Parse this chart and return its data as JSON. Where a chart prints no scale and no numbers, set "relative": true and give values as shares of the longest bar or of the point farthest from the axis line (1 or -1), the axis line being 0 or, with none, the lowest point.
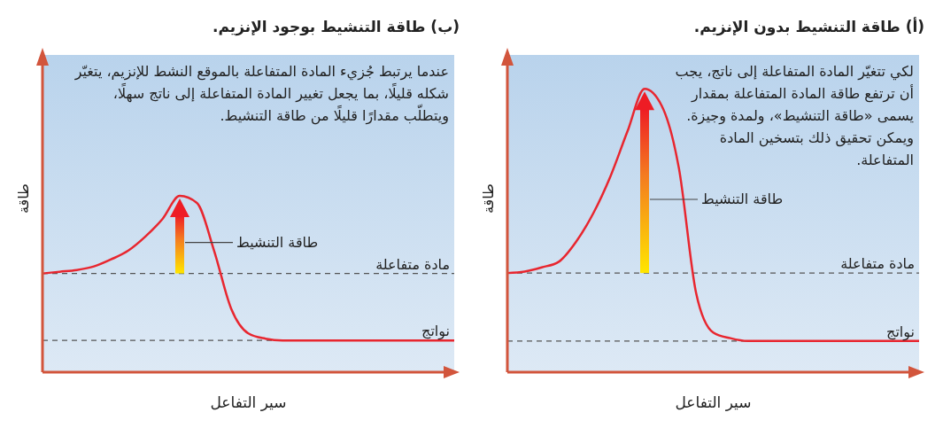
{
  "chart_data": [
    {
      "type": "line",
      "title": "(أ) طاقة التنشيط بدون الإنزيم.",
      "xlabel": "سير التفاعل",
      "ylabel": "طاقة",
      "relative": true,
      "marker": "none",
      "line_style": "solid",
      "legend": false,
      "grid": false,
      "categories": [
        null,
        null,
        null,
        null,
        null,
        null,
        null,
        null,
        null,
        null,
        null,
        null,
        null,
        null,
        null,
        null,
        null,
        null,
        null,
        null,
        null,
        null,
        null,
        null,
        null
      ],
      "series": [
        {
          "color": "#e8262f",
          "values": [
            0.35,
            0.355,
            0.37,
            0.39,
            0.46,
            0.56,
            0.69,
            0.85,
            1,
            0.94,
            0.72,
            0.28,
            0.14,
            0.12,
            0.11,
            0.11,
            0.11,
            0.11,
            0.11,
            0.11,
            0.11,
            0.11,
            0.11,
            0.11,
            0.11
          ]
        }
      ],
      "ref_lines": [
        {
          "axis": "y",
          "value": 0.35,
          "label": "مادة متفاعلة",
          "color": "#555555",
          "line_style": "dashed"
        },
        {
          "axis": "y",
          "value": 0.11,
          "label": "نواتج",
          "color": "#555555",
          "line_style": "dashed"
        }
      ],
      "annotations": [
        "لكي تتغيّر المادة المتفاعلة إلى ناتج، يجب أن ترتفع طاقة المادة المتفاعلة بمقدار يسمى «طاقة التنشيط»، ولمدة وجيزة. ويمكن تحقيق ذلك بتسخين المادة المتفاعلة.",
        "طاقة التنشيط"
      ]
    },
    {
      "type": "line",
      "title": "(ب) طاقة التنشيط بوجود الإنزيم.",
      "xlabel": "سير التفاعل",
      "ylabel": "طاقة",
      "relative": true,
      "marker": "none",
      "line_style": "solid",
      "legend": false,
      "grid": false,
      "categories": [
        null,
        null,
        null,
        null,
        null,
        null,
        null,
        null,
        null,
        null,
        null,
        null,
        null,
        null,
        null,
        null,
        null,
        null,
        null,
        null,
        null,
        null,
        null,
        null,
        null
      ],
      "series": [
        {
          "color": "#e8262f",
          "values": [
            0.56,
            0.57,
            0.58,
            0.6,
            0.64,
            0.69,
            0.77,
            0.87,
            1,
            0.96,
            0.69,
            0.36,
            0.22,
            0.19,
            0.18,
            0.18,
            0.18,
            0.18,
            0.18,
            0.18,
            0.18,
            0.18,
            0.18,
            0.18,
            0.18
          ]
        }
      ],
      "ref_lines": [
        {
          "axis": "y",
          "value": 0.56,
          "label": "مادة متفاعلة",
          "color": "#555555",
          "line_style": "dashed"
        },
        {
          "axis": "y",
          "value": 0.18,
          "label": "نواتج",
          "color": "#555555",
          "line_style": "dashed"
        }
      ],
      "annotations": [
        "عندما يرتبط جُزيء المادة المتفاعلة بالموقع النشط للإنزيم، يتغيّر شكله قليلًا، بما يجعل تغيير المادة المتفاعلة إلى ناتج سهلًا، ويتطلّب مقدارًا قليلًا من طاقة التنشيط.",
        "طاقة التنشيط"
      ]
    }
  ]
}
